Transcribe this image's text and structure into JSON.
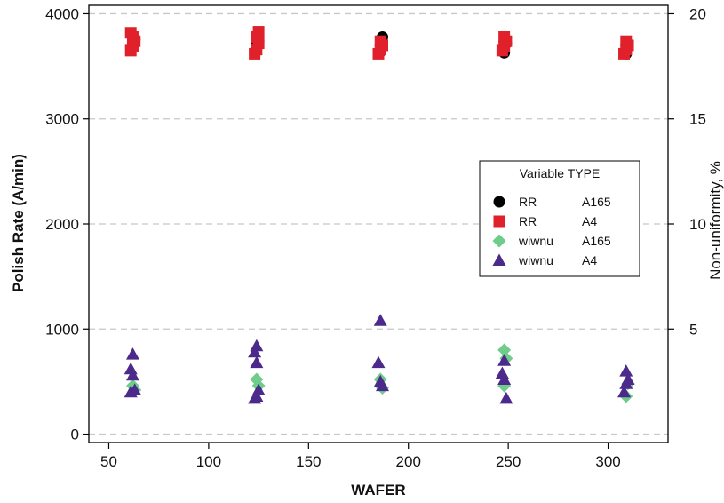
{
  "chart_data": {
    "type": "scatter",
    "xlabel": "WAFER",
    "ylabel": "Polish Rate (A/min)",
    "y2label": "Non-uniformity, %",
    "xlim": [
      40,
      330
    ],
    "ylim": [
      -80,
      4080
    ],
    "y2lim": [
      -0.4,
      20.4
    ],
    "xticks": [
      50,
      100,
      150,
      200,
      250,
      300
    ],
    "yticks": [
      0,
      1000,
      2000,
      3000,
      4000
    ],
    "y2ticks": [
      5,
      10,
      15,
      20
    ],
    "grid": "horizontal dashed at right-axis ticks",
    "legend": {
      "title": "Variable TYPE",
      "placement": "center-right",
      "entries": [
        {
          "variable": "RR",
          "type": "A165",
          "color": "#000000",
          "marker": "circle"
        },
        {
          "variable": "RR",
          "type": "A4",
          "color": "#e0202a",
          "marker": "square"
        },
        {
          "variable": "wiwnu",
          "type": "A165",
          "color": "#6fcc8b",
          "marker": "diamond"
        },
        {
          "variable": "wiwnu",
          "type": "A4",
          "color": "#4b2a8c",
          "marker": "triangle"
        }
      ]
    },
    "series": [
      {
        "variable": "RR",
        "type": "A165",
        "axis": "left",
        "marker": "circle",
        "color": "#000000",
        "points": [
          [
            62,
            3720
          ],
          [
            63,
            3760
          ],
          [
            124,
            3700
          ],
          [
            125,
            3740
          ],
          [
            186,
            3640
          ],
          [
            187,
            3780
          ],
          [
            248,
            3630
          ],
          [
            249,
            3720
          ],
          [
            309,
            3620
          ],
          [
            310,
            3700
          ]
        ]
      },
      {
        "variable": "RR",
        "type": "A4",
        "axis": "left",
        "marker": "square",
        "color": "#e0202a",
        "points": [
          [
            61,
            3650
          ],
          [
            62,
            3690
          ],
          [
            63,
            3740
          ],
          [
            62,
            3780
          ],
          [
            61,
            3820
          ],
          [
            123,
            3620
          ],
          [
            124,
            3660
          ],
          [
            125,
            3720
          ],
          [
            124,
            3780
          ],
          [
            125,
            3830
          ],
          [
            185,
            3620
          ],
          [
            186,
            3660
          ],
          [
            187,
            3700
          ],
          [
            186,
            3740
          ],
          [
            247,
            3650
          ],
          [
            248,
            3690
          ],
          [
            249,
            3740
          ],
          [
            248,
            3780
          ],
          [
            308,
            3620
          ],
          [
            309,
            3660
          ],
          [
            310,
            3700
          ],
          [
            309,
            3740
          ]
        ]
      },
      {
        "variable": "wiwnu",
        "type": "A165",
        "axis": "right",
        "marker": "diamond",
        "color": "#6fcc8b",
        "points": [
          [
            62,
            2.3
          ],
          [
            63,
            2.1
          ],
          [
            124,
            2.6
          ],
          [
            125,
            2.3
          ],
          [
            186,
            2.6
          ],
          [
            187,
            2.2
          ],
          [
            248,
            4.0
          ],
          [
            249,
            3.6
          ],
          [
            248,
            2.3
          ],
          [
            310,
            2.4
          ],
          [
            309,
            1.8
          ]
        ]
      },
      {
        "variable": "wiwnu",
        "type": "A4",
        "axis": "right",
        "marker": "triangle",
        "color": "#4b2a8c",
        "points": [
          [
            62,
            3.8
          ],
          [
            61,
            3.1
          ],
          [
            62,
            2.8
          ],
          [
            63,
            2.1
          ],
          [
            61,
            2.0
          ],
          [
            124,
            4.2
          ],
          [
            123,
            3.9
          ],
          [
            124,
            3.4
          ],
          [
            125,
            2.1
          ],
          [
            124,
            1.8
          ],
          [
            123,
            1.7
          ],
          [
            186,
            5.4
          ],
          [
            185,
            3.4
          ],
          [
            186,
            2.5
          ],
          [
            187,
            2.3
          ],
          [
            248,
            3.5
          ],
          [
            247,
            2.9
          ],
          [
            248,
            2.6
          ],
          [
            249,
            1.7
          ],
          [
            309,
            3.0
          ],
          [
            310,
            2.6
          ],
          [
            309,
            2.4
          ],
          [
            308,
            2.0
          ]
        ]
      }
    ]
  }
}
